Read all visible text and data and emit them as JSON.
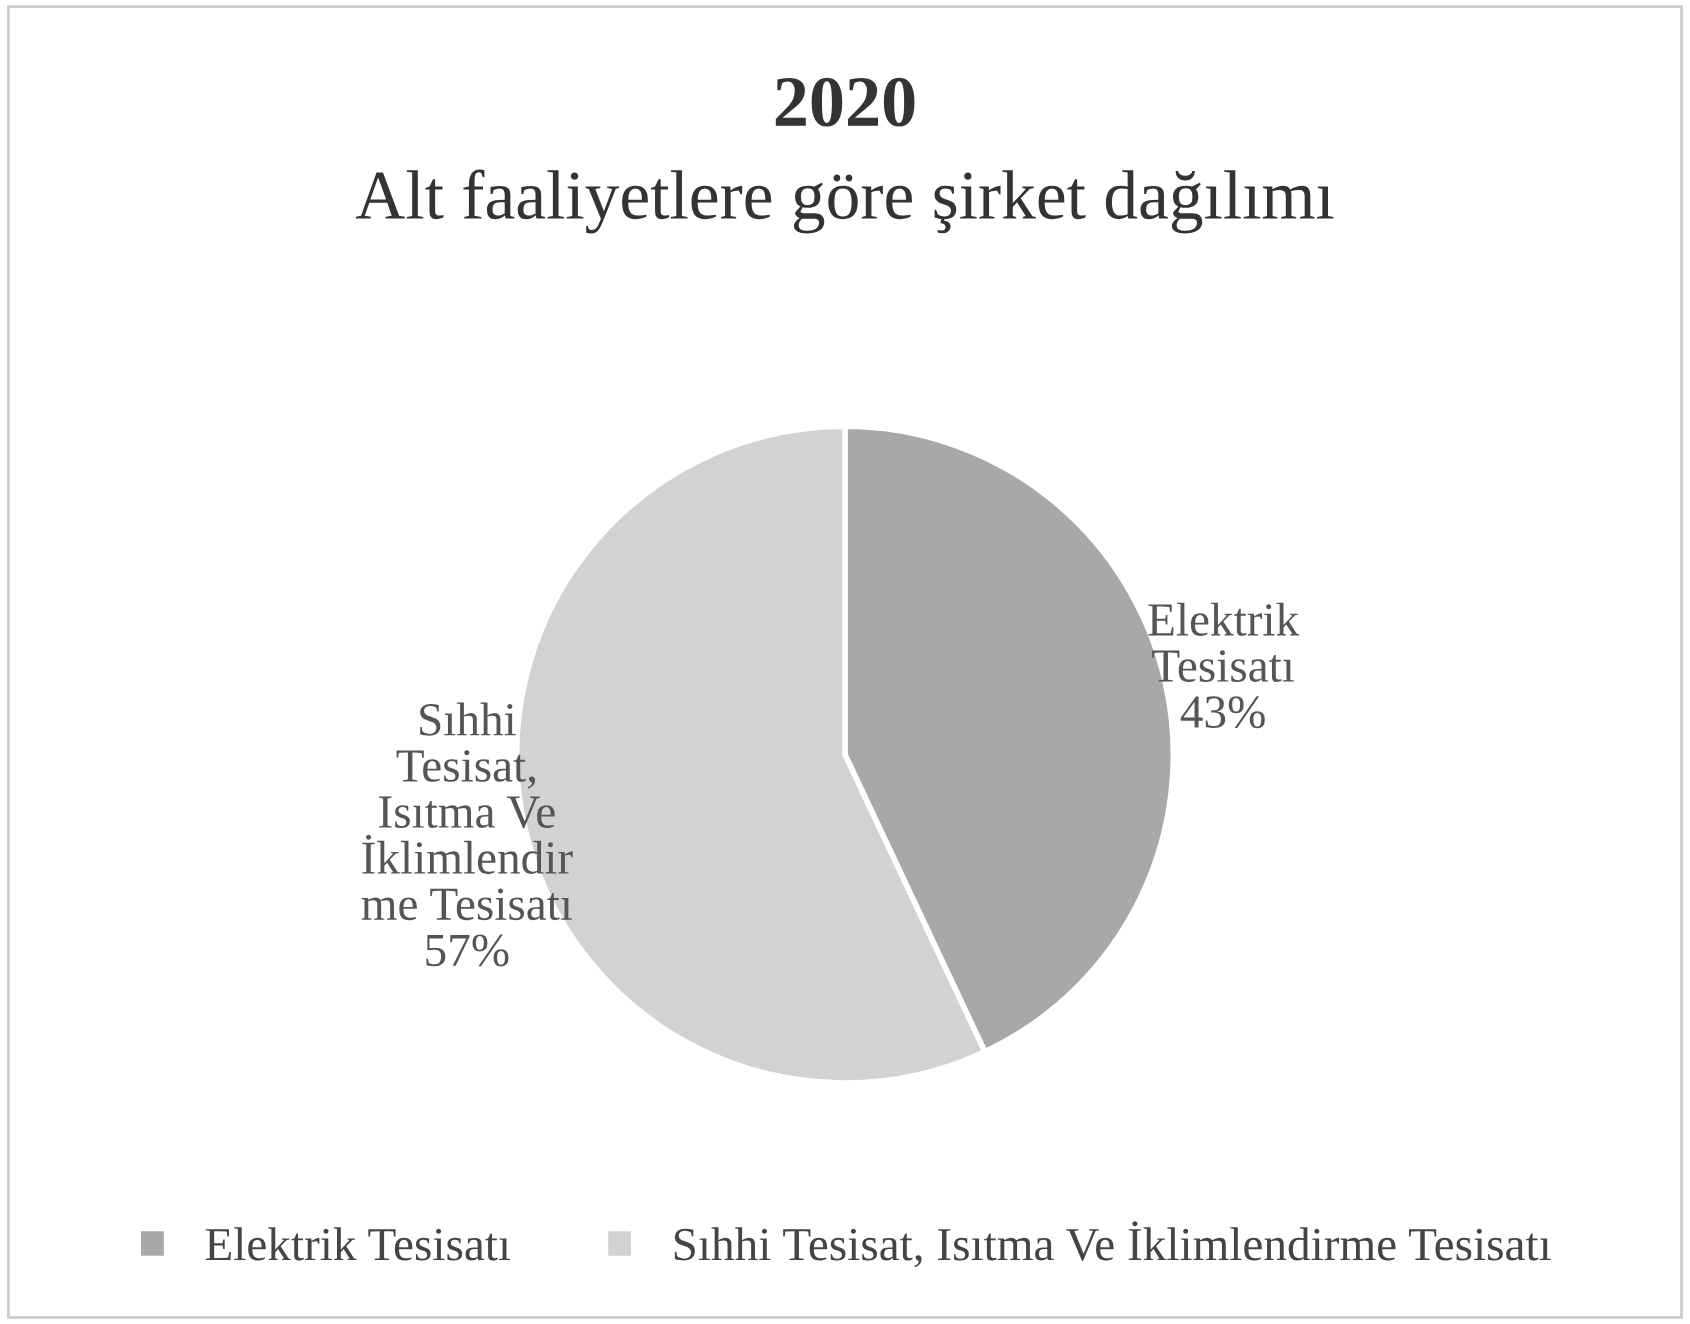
{
  "chart_data": {
    "type": "pie",
    "title": "2020",
    "subtitle": "Alt faaliyetlere göre şirket dağılımı",
    "categories": [
      "Elektrik Tesisatı",
      "Sıhhi Tesisat, Isıtma Ve İklimlendirme Tesisatı"
    ],
    "values": [
      43,
      57
    ],
    "colors": [
      "#a8a8a8",
      "#d2d2d2"
    ],
    "value_labels": [
      "43%",
      "57%"
    ],
    "legend": "bottom"
  }
}
